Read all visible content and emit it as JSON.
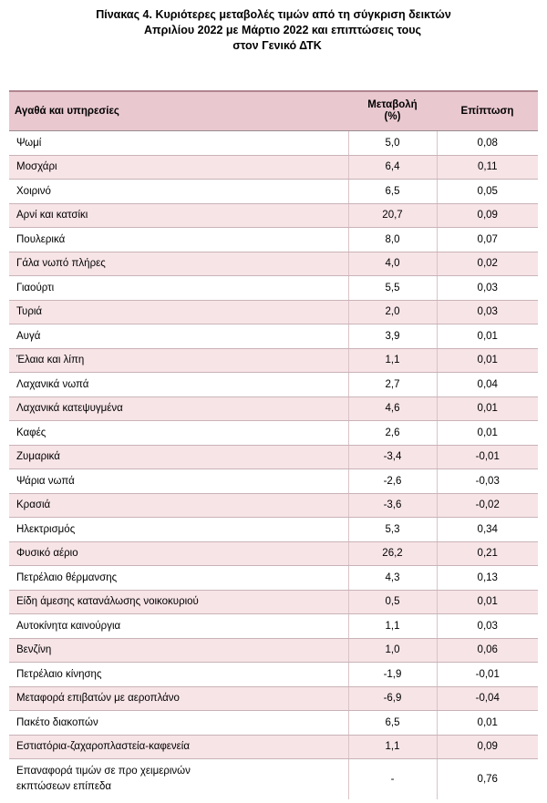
{
  "title": {
    "line1": "Πίνακας  4. Κυριότερες μεταβολές τιμών από τη σύγκριση δεικτών",
    "line2": "Απριλίου 2022 με Μάρτιο 2022 και επιπτώσεις τους",
    "line3": "στον Γενικό ΔΤΚ"
  },
  "table": {
    "headers": {
      "goods": "Αγαθά και υπηρεσίες",
      "change_line1": "Μεταβολή",
      "change_line2": "(%)",
      "impact": "Επίπτωση"
    },
    "rows": [
      {
        "name": "Ψωμί",
        "change": "5,0",
        "impact": "0,08"
      },
      {
        "name": "Μοσχάρι",
        "change": "6,4",
        "impact": "0,11"
      },
      {
        "name": "Χοιρινό",
        "change": "6,5",
        "impact": "0,05"
      },
      {
        "name": "Αρνί και κατσίκι",
        "change": "20,7",
        "impact": "0,09"
      },
      {
        "name": "Πουλερικά",
        "change": "8,0",
        "impact": "0,07"
      },
      {
        "name": "Γάλα νωπό πλήρες",
        "change": "4,0",
        "impact": "0,02"
      },
      {
        "name": "Γιαούρτι",
        "change": "5,5",
        "impact": "0,03"
      },
      {
        "name": "Τυριά",
        "change": "2,0",
        "impact": "0,03"
      },
      {
        "name": "Αυγά",
        "change": "3,9",
        "impact": "0,01"
      },
      {
        "name": "Έλαια και λίπη",
        "change": "1,1",
        "impact": "0,01"
      },
      {
        "name": "Λαχανικά νωπά",
        "change": "2,7",
        "impact": "0,04"
      },
      {
        "name": "Λαχανικά κατεψυγμένα",
        "change": "4,6",
        "impact": "0,01"
      },
      {
        "name": "Καφές",
        "change": "2,6",
        "impact": "0,01"
      },
      {
        "name": "Ζυμαρικά",
        "change": "-3,4",
        "impact": "-0,01"
      },
      {
        "name": "Ψάρια νωπά",
        "change": "-2,6",
        "impact": "-0,03"
      },
      {
        "name": "Κρασιά",
        "change": "-3,6",
        "impact": "-0,02"
      },
      {
        "name": "Ηλεκτρισμός",
        "change": "5,3",
        "impact": "0,34"
      },
      {
        "name": "Φυσικό αέριο",
        "change": "26,2",
        "impact": "0,21"
      },
      {
        "name": "Πετρέλαιο θέρμανσης",
        "change": "4,3",
        "impact": "0,13"
      },
      {
        "name": "Είδη άμεσης κατανάλωσης νοικοκυριού",
        "change": "0,5",
        "impact": "0,01"
      },
      {
        "name": "Αυτοκίνητα καινούργια",
        "change": "1,1",
        "impact": "0,03"
      },
      {
        "name": "Βενζίνη",
        "change": "1,0",
        "impact": "0,06"
      },
      {
        "name": "Πετρέλαιο κίνησης",
        "change": "-1,9",
        "impact": "-0,01"
      },
      {
        "name": "Μεταφορά επιβατών με αεροπλάνο",
        "change": "-6,9",
        "impact": "-0,04"
      },
      {
        "name": "Πακέτο διακοπών",
        "change": "6,5",
        "impact": "0,01"
      },
      {
        "name": "Εστιατόρια-ζαχαροπλαστεία-καφενεία",
        "change": "1,1",
        "impact": "0,09"
      }
    ],
    "last_row": {
      "name_line1": "Επαναφορά τιμών σε προ χειμερινών",
      "name_line2": "εκπτώσεων επίπεδα",
      "change": "-",
      "impact": "0,76"
    }
  }
}
